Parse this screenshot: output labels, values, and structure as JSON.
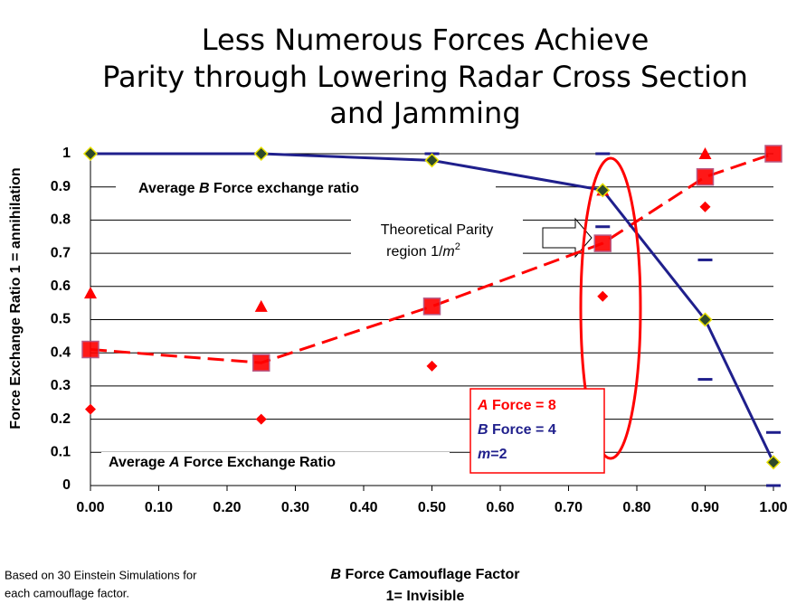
{
  "chart_data": {
    "type": "line",
    "title": [
      "Less Numerous Forces Achieve",
      "Parity through Lowering Radar Cross Section",
      "and Jamming"
    ],
    "x_label": [
      [
        "B",
        " Force Camouflage Factor"
      ],
      [
        "1= Invisible"
      ]
    ],
    "y_label": "Force Exchange  Ratio 1 = annihilation",
    "footnote": [
      "Based on 30 Einstein Simulations for",
      "each camouflage factor."
    ],
    "x": [
      0,
      0.25,
      0.5,
      0.75,
      0.9,
      1.0
    ],
    "series": [
      {
        "color": "#1f1f8c",
        "marker": "diamond",
        "line": "solid",
        "values": [
          1,
          1,
          0.98,
          0.89,
          0.5,
          0.07
        ]
      },
      {
        "color": "#ff0000",
        "marker": "square",
        "line": "dashed",
        "values": [
          0.41,
          0.37,
          0.54,
          0.73,
          0.93,
          1.0
        ]
      },
      {
        "color": "#ff0000",
        "marker": "triangle",
        "values": [
          0.58,
          0.54,
          null,
          0.89,
          1.0,
          null
        ]
      },
      {
        "color": "#ff0000",
        "marker": "small-diamond",
        "values": [
          0.23,
          0.2,
          0.36,
          0.57,
          0.84,
          null
        ]
      },
      {
        "color": "#1f1f8c",
        "marker": "dash",
        "values": [
          null,
          null,
          1.0,
          1.0,
          0.68,
          0.16
        ]
      },
      {
        "color": "#1f1f8c",
        "marker": "dash",
        "values": [
          null,
          null,
          null,
          0.78,
          0.32,
          0.0
        ]
      }
    ],
    "xlim": [
      0,
      1
    ],
    "ylim": [
      0,
      1
    ],
    "xticks": [
      {
        "value": 0,
        "label": "0.00"
      },
      {
        "value": 0.1,
        "label": "0.10"
      },
      {
        "value": 0.2,
        "label": "0.20"
      },
      {
        "value": 0.3,
        "label": "0.30"
      },
      {
        "value": 0.4,
        "label": "0.40"
      },
      {
        "value": 0.5,
        "label": "0.50"
      },
      {
        "value": 0.6,
        "label": "0.60"
      },
      {
        "value": 0.7,
        "label": "0.70"
      },
      {
        "value": 0.8,
        "label": "0.80"
      },
      {
        "value": 0.9,
        "label": "0.90"
      },
      {
        "value": 1.0,
        "label": "1.00"
      }
    ],
    "yticks": [
      0,
      0.1,
      0.2,
      0.3,
      0.4,
      0.5,
      0.6,
      0.7,
      0.8,
      0.9,
      1
    ],
    "grid": true,
    "annotations": {
      "b_average": [
        "Average ",
        "B",
        " Force exchange ratio"
      ],
      "a_average": [
        "Average ",
        "A",
        " Force Exchange Ratio"
      ],
      "parity": [
        [
          "Theoretical Parity"
        ],
        [
          "region 1/",
          "m",
          "2"
        ]
      ],
      "legend_box": [
        [
          "A",
          " Force = 8"
        ],
        [
          "B",
          " Force = 4"
        ],
        [
          "m",
          "=2"
        ]
      ]
    }
  }
}
